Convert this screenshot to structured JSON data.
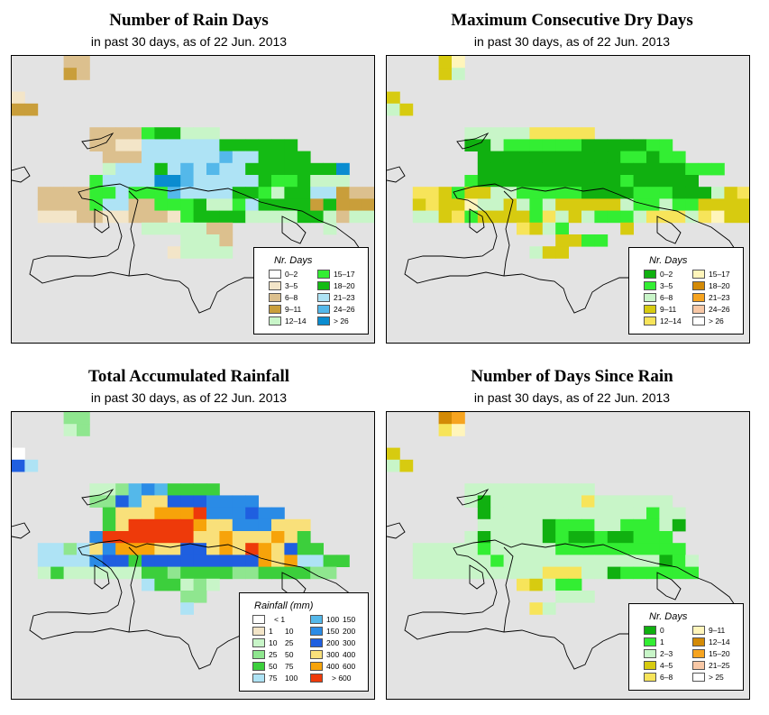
{
  "panels": [
    {
      "title": "Number of Rain Days",
      "subtitle": "in past 30 days, as of  22 Jun. 2013",
      "legend": {
        "title": "Nr. Days",
        "items": [
          {
            "label": "0–2",
            "color": "#ffffff"
          },
          {
            "label": "3–5",
            "color": "#f3e5c8"
          },
          {
            "label": "6–8",
            "color": "#dcc08e"
          },
          {
            "label": "9–11",
            "color": "#c99e3a"
          },
          {
            "label": "12–14",
            "color": "#c8f5c8"
          },
          {
            "label": "15–17",
            "color": "#33ee33"
          },
          {
            "label": "18–20",
            "color": "#14bb14"
          },
          {
            "label": "21–23",
            "color": "#aee3f5"
          },
          {
            "label": "24–26",
            "color": "#54b8ea"
          },
          {
            "label": "> 26",
            "color": "#0a8cd0"
          }
        ]
      }
    },
    {
      "title": "Maximum Consecutive Dry Days",
      "subtitle": "in past 30 days, as of  22 Jun. 2013",
      "legend": {
        "title": "Nr. Days",
        "items": [
          {
            "label": "0–2",
            "color": "#10b010"
          },
          {
            "label": "3–5",
            "color": "#33ee33"
          },
          {
            "label": "6–8",
            "color": "#c8f5c8"
          },
          {
            "label": "9–11",
            "color": "#d7cb10"
          },
          {
            "label": "12–14",
            "color": "#f7e45a"
          },
          {
            "label": "15–17",
            "color": "#fff5bb"
          },
          {
            "label": "18–20",
            "color": "#d38a06"
          },
          {
            "label": "21–23",
            "color": "#f6a420"
          },
          {
            "label": "24–26",
            "color": "#f8c8a6"
          },
          {
            "label": "> 26",
            "color": "#ffffff"
          }
        ]
      }
    },
    {
      "title": "Total Accumulated Rainfall",
      "subtitle": "in past 30 days, as of  22 Jun. 2013",
      "legend": {
        "title": "Rainfall (mm)",
        "items": [
          {
            "lo": "",
            "hi": "< 1",
            "color": "#ffffff"
          },
          {
            "lo": "1",
            "hi": "10",
            "color": "#f3e5c8"
          },
          {
            "lo": "10",
            "hi": "25",
            "color": "#c8f5c8"
          },
          {
            "lo": "25",
            "hi": "50",
            "color": "#8fe68f"
          },
          {
            "lo": "50",
            "hi": "75",
            "color": "#3ccf3c"
          },
          {
            "lo": "75",
            "hi": "100",
            "color": "#aee3f5"
          },
          {
            "lo": "100",
            "hi": "150",
            "color": "#54b8ea"
          },
          {
            "lo": "150",
            "hi": "200",
            "color": "#2a8be6"
          },
          {
            "lo": "200",
            "hi": "300",
            "color": "#1f5fe0"
          },
          {
            "lo": "300",
            "hi": "400",
            "color": "#f9e07a"
          },
          {
            "lo": "400",
            "hi": "600",
            "color": "#f7a30a"
          },
          {
            "lo": "",
            "hi": "> 600",
            "color": "#ee3a0a"
          }
        ]
      }
    },
    {
      "title": "Number of Days Since Rain",
      "subtitle": "in past 30 days, as of  22 Jun. 2013",
      "legend": {
        "title": "Nr. Days",
        "items": [
          {
            "label": "0",
            "color": "#10b010"
          },
          {
            "label": "1",
            "color": "#33ee33"
          },
          {
            "label": "2–3",
            "color": "#c8f5c8"
          },
          {
            "label": "4–5",
            "color": "#d7cb10"
          },
          {
            "label": "6–8",
            "color": "#f7e45a"
          },
          {
            "label": "9–11",
            "color": "#fff5bb"
          },
          {
            "label": "12–14",
            "color": "#d38a06"
          },
          {
            "label": "15–20",
            "color": "#f6a420"
          },
          {
            "label": "21–25",
            "color": "#f8c8a6"
          },
          {
            "label": "> 25",
            "color": "#ffffff"
          }
        ]
      }
    }
  ],
  "grids": [
    [
      "....22......................",
      "....32......................",
      "............................",
      "1...........................",
      "33..........................",
      "................",
      "......2222566444................",
      "......2211777777666666..........",
      ".......2227777778776666.........",
      ".......4777678787766666669......",
      "......57777998777776556444......",
      "..22225575558777766546677322....",
      "..22225772255564457666636333....",
      "..11122112221566664444664244....",
      "..........4444422.......4.......",
      ".............4442...............",
      "............14444...............",
      "...................."
    ],
    [
      "....35......................",
      "....32......................",
      "............................",
      "3...........................",
      "23..........................",
      "...............",
      "......2222244444................",
      "......0021111110000011..........",
      ".......0000000000011011.........",
      ".......0000000000000000111......",
      "......100000000000100000........",
      "..44313322111110000111000234....",
      "..34335223212333332112113333....",
      "..22341333314232111244424533....",
      "..........4321....3.............",
      ".............3311...............",
      "...........233.................."
    ],
    [
      "....33......................",
      "....23......................",
      "............................",
      "0...........................",
      "85..........................",
      "...............",
      "......2236764444................",
      "......3386998887777.............",
      ".......4999AAAB777877...........",
      ".......49BBBBBA99777999.........",
      "......7BBBBBBB99A999A94.........",
      "..553597AAA99889A9BA9844........",
      "..55557884888888888A9A5544......",
      "..24222222443444433444433.......",
      "..........544232................",
      ".............33.................",
      ".............5.................."
    ],
    [
      "....67......................",
      "....45......................",
      "............................",
      "3...........................",
      "23..........................",
      "...............",
      "......2222222222................",
      "......2022222224222222..........",
      ".......0222222222222122.........",
      ".......2222201112211120.........",
      "......2022220100100111..........",
      "..222221222221111111111.........",
      "..2222221222222222222012........",
      "..2222222222444220111111........",
      "..........43211.................",
      ".............222................",
      "...........42.................."
    ]
  ],
  "palettes": [
    [
      "#ffffff",
      "#f3e5c8",
      "#dcc08e",
      "#c99e3a",
      "#c8f5c8",
      "#33ee33",
      "#14bb14",
      "#aee3f5",
      "#54b8ea",
      "#0a8cd0"
    ],
    [
      "#10b010",
      "#33ee33",
      "#c8f5c8",
      "#d7cb10",
      "#f7e45a",
      "#fff5bb",
      "#d38a06",
      "#f6a420",
      "#f8c8a6",
      "#ffffff"
    ],
    [
      "#ffffff",
      "#f3e5c8",
      "#c8f5c8",
      "#8fe68f",
      "#3ccf3c",
      "#aee3f5",
      "#54b8ea",
      "#2a8be6",
      "#1f5fe0",
      "#f9e07a",
      "#f7a30a",
      "#ee3a0a"
    ],
    [
      "#10b010",
      "#33ee33",
      "#c8f5c8",
      "#d7cb10",
      "#f7e45a",
      "#fff5bb",
      "#d38a06",
      "#f6a420",
      "#f8c8a6",
      "#ffffff"
    ]
  ]
}
